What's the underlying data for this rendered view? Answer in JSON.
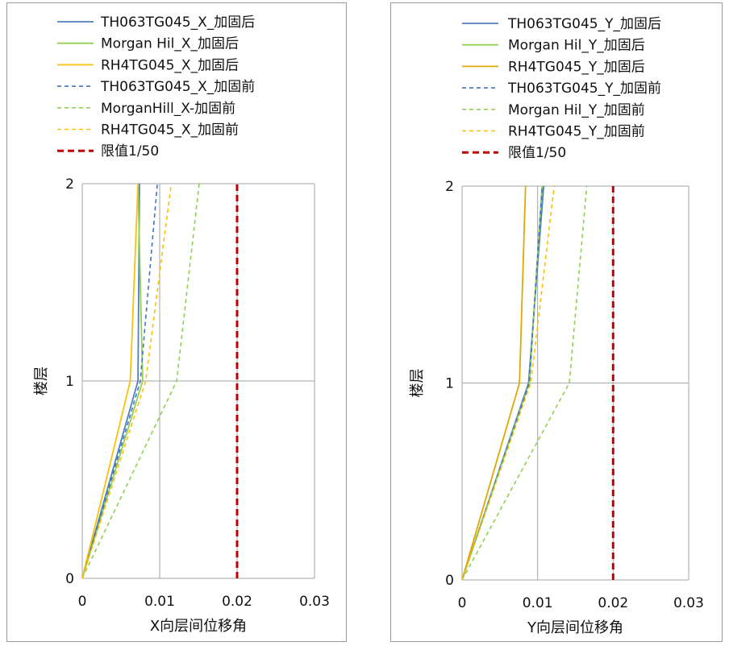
{
  "chart_data": [
    {
      "type": "line",
      "xlabel": "X向层间位移角",
      "ylabel": "楼层",
      "xlim": [
        0,
        0.03
      ],
      "ylim": [
        0,
        2
      ],
      "xticks": [
        "0",
        "0.01",
        "0.02",
        "0.03"
      ],
      "yticks": [
        "0",
        "1",
        "2"
      ],
      "grid": true,
      "legend_position": "top",
      "series": [
        {
          "name": "TH063TG045_X_加固后",
          "color": "#4F81BD",
          "dash": "solid",
          "points": [
            [
              0,
              0
            ],
            [
              0.0072,
              1
            ],
            [
              0.0074,
              2
            ]
          ]
        },
        {
          "name": "Morgan Hil_X_加固后",
          "color": "#92D050",
          "dash": "solid",
          "points": [
            [
              0,
              0
            ],
            [
              0.0078,
              1
            ],
            [
              0.0072,
              2
            ]
          ]
        },
        {
          "name": "RH4TG045_X_加固后",
          "color": "#F9C10C",
          "dash": "solid",
          "points": [
            [
              0,
              0
            ],
            [
              0.0062,
              1
            ],
            [
              0.0072,
              2
            ]
          ]
        },
        {
          "name": "TH063TG045_X_加固前",
          "color": "#4472C4",
          "dash": "dashed",
          "points": [
            [
              0,
              0
            ],
            [
              0.0075,
              1
            ],
            [
              0.0097,
              2
            ]
          ]
        },
        {
          "name": "MorganHill_X-加固前",
          "color": "#92D050",
          "dash": "dashed",
          "points": [
            [
              0,
              0
            ],
            [
              0.0122,
              1
            ],
            [
              0.0151,
              2
            ]
          ]
        },
        {
          "name": "RH4TG045_X_加固前",
          "color": "#FFC000",
          "dash": "dashed",
          "points": [
            [
              0,
              0
            ],
            [
              0.0082,
              1
            ],
            [
              0.0115,
              2
            ]
          ]
        },
        {
          "name": "限值1/50",
          "color": "#C00000",
          "dash": "bold-dashed",
          "points": [
            [
              0.02,
              0
            ],
            [
              0.02,
              2
            ]
          ]
        }
      ]
    },
    {
      "type": "line",
      "xlabel": "Y向层间位移角",
      "ylabel": "楼层",
      "xlim": [
        0,
        0.03
      ],
      "ylim": [
        0,
        2
      ],
      "xticks": [
        "0",
        "0.01",
        "0.02",
        "0.03"
      ],
      "yticks": [
        "0",
        "1",
        "2"
      ],
      "grid": true,
      "legend_position": "top",
      "series": [
        {
          "name": "TH063TG045_Y_加固后",
          "color": "#4F81BD",
          "dash": "solid",
          "points": [
            [
              0,
              0
            ],
            [
              0.0088,
              1
            ],
            [
              0.0108,
              2
            ]
          ]
        },
        {
          "name": "Morgan Hil_Y_加固后",
          "color": "#92D050",
          "dash": "solid",
          "points": [
            [
              0,
              0
            ],
            [
              0.0089,
              1
            ],
            [
              0.0106,
              2
            ]
          ]
        },
        {
          "name": "RH4TG045_Y_加固后",
          "color": "#E0A800",
          "dash": "solid",
          "points": [
            [
              0,
              0
            ],
            [
              0.0076,
              1
            ],
            [
              0.0084,
              2
            ]
          ]
        },
        {
          "name": "TH063TG045_Y_加固前",
          "color": "#4472C4",
          "dash": "dashed",
          "points": [
            [
              0,
              0
            ],
            [
              0.0089,
              1
            ],
            [
              0.0106,
              2
            ]
          ]
        },
        {
          "name": "Morgan Hil_Y_加固前",
          "color": "#92D050",
          "dash": "dashed",
          "points": [
            [
              0,
              0
            ],
            [
              0.0142,
              1
            ],
            [
              0.0165,
              2
            ]
          ]
        },
        {
          "name": "RH4TG045_Y_加固前",
          "color": "#FFC000",
          "dash": "dashed",
          "points": [
            [
              0,
              0
            ],
            [
              0.0091,
              1
            ],
            [
              0.0122,
              2
            ]
          ]
        },
        {
          "name": "限值1/50",
          "color": "#C00000",
          "dash": "bold-dashed",
          "points": [
            [
              0.02,
              0
            ],
            [
              0.02,
              2
            ]
          ]
        }
      ]
    }
  ]
}
